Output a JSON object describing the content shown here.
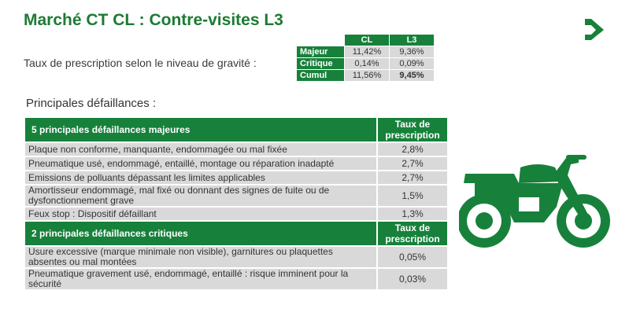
{
  "title": "Marché CT CL : Contre-visites L3",
  "rate_label": "Taux de prescription selon le niveau de gravité :",
  "summary": {
    "headers": [
      "CL",
      "L3"
    ],
    "rows": [
      {
        "label": "Majeur",
        "cl": "11,42%",
        "l3": "9,36%"
      },
      {
        "label": "Critique",
        "cl": "0,14%",
        "l3": "0,09%"
      },
      {
        "label": "Cumul",
        "cl": "11,56%",
        "l3": "9,45%"
      }
    ]
  },
  "subtitle": "Principales défaillances :",
  "majeures": {
    "header": "5 principales défaillances majeures",
    "rate_header": "Taux de prescription",
    "rows": [
      {
        "desc": "Plaque non conforme, manquante, endommagée ou mal fixée",
        "rate": "2,8%"
      },
      {
        "desc": "Pneumatique usé, endommagé, entaillé, montage ou réparation inadapté",
        "rate": "2,7%"
      },
      {
        "desc": "Emissions de polluants dépassant les limites applicables",
        "rate": "2,7%"
      },
      {
        "desc": "Amortisseur endommagé, mal fixé ou donnant des signes de fuite ou de dysfonctionnement grave",
        "rate": "1,5%"
      },
      {
        "desc": "Feux stop : Dispositif défaillant",
        "rate": "1,3%"
      }
    ]
  },
  "critiques": {
    "header": "2 principales défaillances critiques",
    "rate_header": "Taux de prescription",
    "rows": [
      {
        "desc": "Usure excessive (marque minimale non visible), garnitures ou plaquettes absentes ou mal montées",
        "rate": "0,05%"
      },
      {
        "desc": "Pneumatique gravement usé, endommagé, entaillé : risque imminent pour la sécurité",
        "rate": "0,03%"
      }
    ]
  },
  "colors": {
    "brand_green": "#17813b",
    "title_green": "#1e7a34",
    "cell_grey": "#d9d9d9"
  },
  "icons": {
    "logo": "brand-arrow-logo",
    "illustration": "motorcycle-icon"
  }
}
